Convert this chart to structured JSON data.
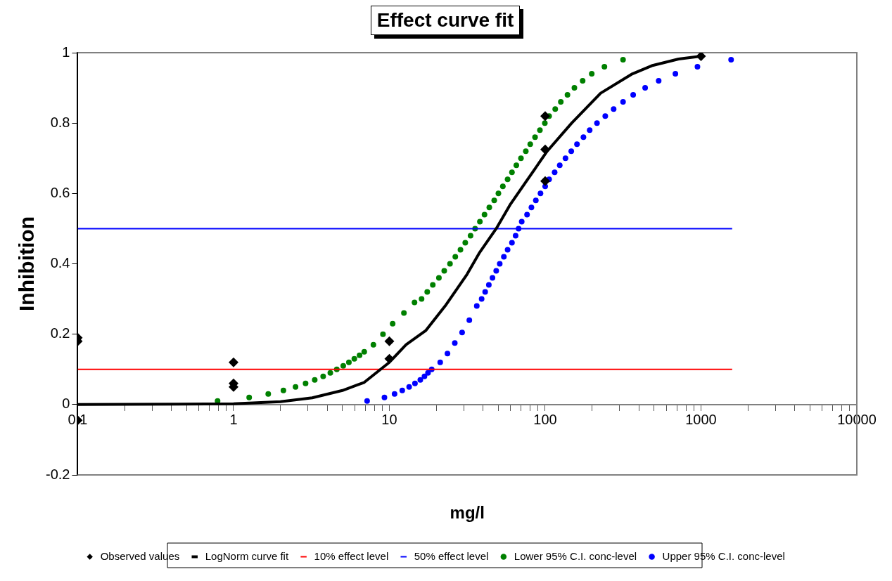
{
  "chart_data": {
    "type": "scatter",
    "title": "Effect curve fit",
    "xlabel": "mg/l",
    "ylabel": "Inhibition",
    "log": "x",
    "xlim": [
      0.1,
      10000
    ],
    "ylim": [
      -0.2,
      1
    ],
    "xticks": [
      0.1,
      {
        "value": 0.2,
        "label": null
      },
      {
        "value": 0.3,
        "label": null
      },
      {
        "value": 0.4,
        "label": null
      },
      {
        "value": 0.5,
        "label": null
      },
      {
        "value": 0.6,
        "label": null
      },
      {
        "value": 0.7,
        "label": null
      },
      {
        "value": 0.8,
        "label": null
      },
      {
        "value": 0.9,
        "label": null
      },
      1,
      {
        "value": 2,
        "label": null
      },
      {
        "value": 3,
        "label": null
      },
      {
        "value": 4,
        "label": null
      },
      {
        "value": 5,
        "label": null
      },
      {
        "value": 6,
        "label": null
      },
      {
        "value": 7,
        "label": null
      },
      {
        "value": 8,
        "label": null
      },
      {
        "value": 9,
        "label": null
      },
      10,
      {
        "value": 20,
        "label": null
      },
      {
        "value": 30,
        "label": null
      },
      {
        "value": 40,
        "label": null
      },
      {
        "value": 50,
        "label": null
      },
      {
        "value": 60,
        "label": null
      },
      {
        "value": 70,
        "label": null
      },
      {
        "value": 80,
        "label": null
      },
      {
        "value": 90,
        "label": null
      },
      100,
      {
        "value": 200,
        "label": null
      },
      {
        "value": 300,
        "label": null
      },
      {
        "value": 400,
        "label": null
      },
      {
        "value": 500,
        "label": null
      },
      {
        "value": 600,
        "label": null
      },
      {
        "value": 700,
        "label": null
      },
      {
        "value": 800,
        "label": null
      },
      {
        "value": 900,
        "label": null
      },
      1000,
      {
        "value": 2000,
        "label": null
      },
      {
        "value": 3000,
        "label": null
      },
      {
        "value": 4000,
        "label": null
      },
      {
        "value": 5000,
        "label": null
      },
      {
        "value": 6000,
        "label": null
      },
      {
        "value": 7000,
        "label": null
      },
      {
        "value": 8000,
        "label": null
      },
      {
        "value": 9000,
        "label": null
      },
      10000
    ],
    "yticks": [
      -0.2,
      0,
      0.2,
      0.4,
      0.6,
      0.8,
      1
    ],
    "legend": "bottom",
    "series": [
      {
        "name": "Observed values",
        "type": "scatter",
        "marker": "diamond",
        "color": "#000000",
        "x": [
          0.1,
          0.1,
          0.1,
          1,
          1,
          1,
          10,
          10,
          100,
          100,
          100,
          1000
        ],
        "values": [
          0.19,
          0.18,
          -0.045,
          0.12,
          0.06,
          0.05,
          0.18,
          0.13,
          0.82,
          0.725,
          0.635,
          0.99
        ]
      },
      {
        "name": "LogNorm curve fit",
        "type": "line",
        "marker": "none",
        "color": "#000000",
        "x": [
          0.1,
          1,
          2,
          3.2,
          5,
          6.9,
          10,
          12.8,
          17.1,
          22.8,
          31.5,
          37.7,
          48.5,
          60,
          80,
          103,
          148,
          227,
          363,
          483,
          718,
          1000
        ],
        "values": [
          0,
          0.002,
          0.008,
          0.019,
          0.04,
          0.063,
          0.12,
          0.17,
          0.21,
          0.28,
          0.37,
          0.43,
          0.5,
          0.57,
          0.65,
          0.72,
          0.8,
          0.885,
          0.94,
          0.963,
          0.982,
          0.99
        ]
      },
      {
        "name": "10% effect level",
        "type": "line",
        "marker": "none",
        "color": "#ff0000",
        "x": [
          0.1,
          1585
        ],
        "values": [
          0.1,
          0.1
        ]
      },
      {
        "name": "50% effect level",
        "type": "line",
        "marker": "none",
        "color": "#0000ff",
        "x": [
          0.1,
          1585
        ],
        "values": [
          0.5,
          0.5
        ]
      },
      {
        "name": "Lower 95% C.I. conc-level",
        "type": "scatter",
        "marker": "circle",
        "color": "#008000",
        "x": [
          0.79,
          1.26,
          1.67,
          2.09,
          2.5,
          2.9,
          3.32,
          3.76,
          4.18,
          4.6,
          5.06,
          5.5,
          5.96,
          6.44,
          6.9,
          7.9,
          9.1,
          10.5,
          12.4,
          14.5,
          16.1,
          17.5,
          19,
          20.8,
          22.5,
          24.5,
          26.5,
          28.6,
          30.7,
          33.2,
          35.5,
          38.1,
          40.8,
          43.8,
          47.1,
          50.1,
          53.5,
          57.4,
          61.2,
          65.3,
          69.9,
          75.1,
          80.2,
          86.1,
          92.5,
          99.5,
          106,
          116,
          126,
          139,
          154,
          174,
          199,
          240,
          316
        ],
        "values": [
          0.01,
          0.02,
          0.03,
          0.04,
          0.05,
          0.06,
          0.07,
          0.08,
          0.09,
          0.1,
          0.11,
          0.12,
          0.13,
          0.14,
          0.15,
          0.17,
          0.2,
          0.23,
          0.26,
          0.29,
          0.3,
          0.32,
          0.34,
          0.36,
          0.38,
          0.4,
          0.42,
          0.44,
          0.46,
          0.48,
          0.5,
          0.52,
          0.54,
          0.56,
          0.58,
          0.6,
          0.62,
          0.64,
          0.66,
          0.68,
          0.7,
          0.72,
          0.74,
          0.76,
          0.78,
          0.8,
          0.82,
          0.84,
          0.86,
          0.88,
          0.9,
          0.92,
          0.94,
          0.96,
          0.98
        ]
      },
      {
        "name": "Upper 95% C.I. conc-level",
        "type": "scatter",
        "marker": "circle",
        "color": "#0000ff",
        "x": [
          7.2,
          9.3,
          10.8,
          12.1,
          13.4,
          14.6,
          15.8,
          16.8,
          17.7,
          18.7,
          21.2,
          23.6,
          26.3,
          29.3,
          32.6,
          36.4,
          39.1,
          41.2,
          43.5,
          45.9,
          48.5,
          51.1,
          54.3,
          57.4,
          61.2,
          64.6,
          67.5,
          70.7,
          76.5,
          81.6,
          87.1,
          93.3,
          100,
          106,
          115,
          124,
          135,
          147,
          160,
          176,
          193,
          215,
          243,
          275,
          316,
          367,
          438,
          535,
          685,
          949,
          1560
        ],
        "values": [
          0.01,
          0.02,
          0.03,
          0.04,
          0.05,
          0.06,
          0.07,
          0.08,
          0.09,
          0.1,
          0.12,
          0.145,
          0.175,
          0.205,
          0.24,
          0.28,
          0.3,
          0.32,
          0.34,
          0.36,
          0.38,
          0.4,
          0.42,
          0.44,
          0.46,
          0.48,
          0.5,
          0.52,
          0.54,
          0.56,
          0.58,
          0.6,
          0.62,
          0.64,
          0.66,
          0.68,
          0.7,
          0.72,
          0.74,
          0.76,
          0.78,
          0.8,
          0.82,
          0.84,
          0.86,
          0.88,
          0.9,
          0.92,
          0.94,
          0.96,
          0.98
        ]
      }
    ]
  }
}
